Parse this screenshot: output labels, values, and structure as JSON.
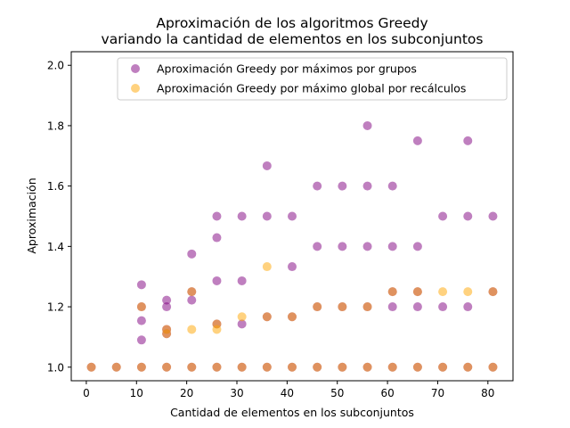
{
  "chart_data": {
    "type": "scatter",
    "title": "Aproximación de los algoritmos Greedy",
    "subtitle": "variando la cantidad de elementos en los subconjuntos",
    "xlabel": "Cantidad de elementos en los subconjuntos",
    "ylabel": "Aproximación",
    "xlim": [
      -3,
      85
    ],
    "ylim": [
      0.955,
      2.045
    ],
    "xticks": [
      0,
      10,
      20,
      30,
      40,
      50,
      60,
      70,
      80
    ],
    "yticks": [
      1.0,
      1.2,
      1.4,
      1.6,
      1.8,
      2.0
    ],
    "ytick_labels": [
      "1.0",
      "1.2",
      "1.4",
      "1.6",
      "1.8",
      "2.0"
    ],
    "grid": false,
    "legend_position": "top-right",
    "series": [
      {
        "name": "Aproximación Greedy por máximos por grupos",
        "color": "#800080",
        "points": [
          [
            1,
            1.0
          ],
          [
            6,
            1.0
          ],
          [
            11,
            1.0
          ],
          [
            11,
            1.09
          ],
          [
            11,
            1.154
          ],
          [
            11,
            1.2
          ],
          [
            11,
            1.273
          ],
          [
            16,
            1.0
          ],
          [
            16,
            1.111
          ],
          [
            16,
            1.125
          ],
          [
            16,
            1.2
          ],
          [
            16,
            1.222
          ],
          [
            21,
            1.0
          ],
          [
            21,
            1.222
          ],
          [
            21,
            1.25
          ],
          [
            21,
            1.375
          ],
          [
            26,
            1.0
          ],
          [
            26,
            1.143
          ],
          [
            26,
            1.286
          ],
          [
            26,
            1.429
          ],
          [
            26,
            1.5
          ],
          [
            31,
            1.0
          ],
          [
            31,
            1.143
          ],
          [
            31,
            1.286
          ],
          [
            31,
            1.5
          ],
          [
            36,
            1.0
          ],
          [
            36,
            1.167
          ],
          [
            36,
            1.5
          ],
          [
            36,
            1.667
          ],
          [
            41,
            1.0
          ],
          [
            41,
            1.167
          ],
          [
            41,
            1.333
          ],
          [
            41,
            1.5
          ],
          [
            46,
            1.0
          ],
          [
            46,
            1.2
          ],
          [
            46,
            1.4
          ],
          [
            46,
            1.6
          ],
          [
            51,
            1.0
          ],
          [
            51,
            1.2
          ],
          [
            51,
            1.4
          ],
          [
            51,
            1.6
          ],
          [
            56,
            1.0
          ],
          [
            56,
            1.2
          ],
          [
            56,
            1.4
          ],
          [
            56,
            1.6
          ],
          [
            56,
            1.8
          ],
          [
            61,
            1.0
          ],
          [
            61,
            1.2
          ],
          [
            61,
            1.25
          ],
          [
            61,
            1.4
          ],
          [
            61,
            1.6
          ],
          [
            66,
            1.0
          ],
          [
            66,
            1.2
          ],
          [
            66,
            1.25
          ],
          [
            66,
            1.4
          ],
          [
            66,
            1.75
          ],
          [
            71,
            1.0
          ],
          [
            71,
            1.2
          ],
          [
            71,
            1.5
          ],
          [
            76,
            1.0
          ],
          [
            76,
            1.2
          ],
          [
            76,
            1.5
          ],
          [
            76,
            1.75
          ],
          [
            81,
            1.0
          ],
          [
            81,
            1.25
          ],
          [
            81,
            1.5
          ]
        ]
      },
      {
        "name": "Aproximación Greedy por máximo global por recálculos",
        "color": "#ffa500",
        "points": [
          [
            1,
            1.0
          ],
          [
            6,
            1.0
          ],
          [
            11,
            1.0
          ],
          [
            11,
            1.2
          ],
          [
            16,
            1.0
          ],
          [
            16,
            1.111
          ],
          [
            16,
            1.125
          ],
          [
            21,
            1.0
          ],
          [
            21,
            1.125
          ],
          [
            21,
            1.25
          ],
          [
            26,
            1.0
          ],
          [
            26,
            1.125
          ],
          [
            26,
            1.143
          ],
          [
            31,
            1.0
          ],
          [
            31,
            1.167
          ],
          [
            36,
            1.0
          ],
          [
            36,
            1.167
          ],
          [
            36,
            1.333
          ],
          [
            41,
            1.0
          ],
          [
            41,
            1.167
          ],
          [
            46,
            1.0
          ],
          [
            46,
            1.2
          ],
          [
            51,
            1.0
          ],
          [
            51,
            1.2
          ],
          [
            56,
            1.0
          ],
          [
            56,
            1.2
          ],
          [
            61,
            1.0
          ],
          [
            61,
            1.25
          ],
          [
            66,
            1.0
          ],
          [
            66,
            1.25
          ],
          [
            71,
            1.0
          ],
          [
            71,
            1.25
          ],
          [
            76,
            1.0
          ],
          [
            76,
            1.25
          ],
          [
            81,
            1.0
          ],
          [
            81,
            1.25
          ]
        ]
      }
    ]
  }
}
